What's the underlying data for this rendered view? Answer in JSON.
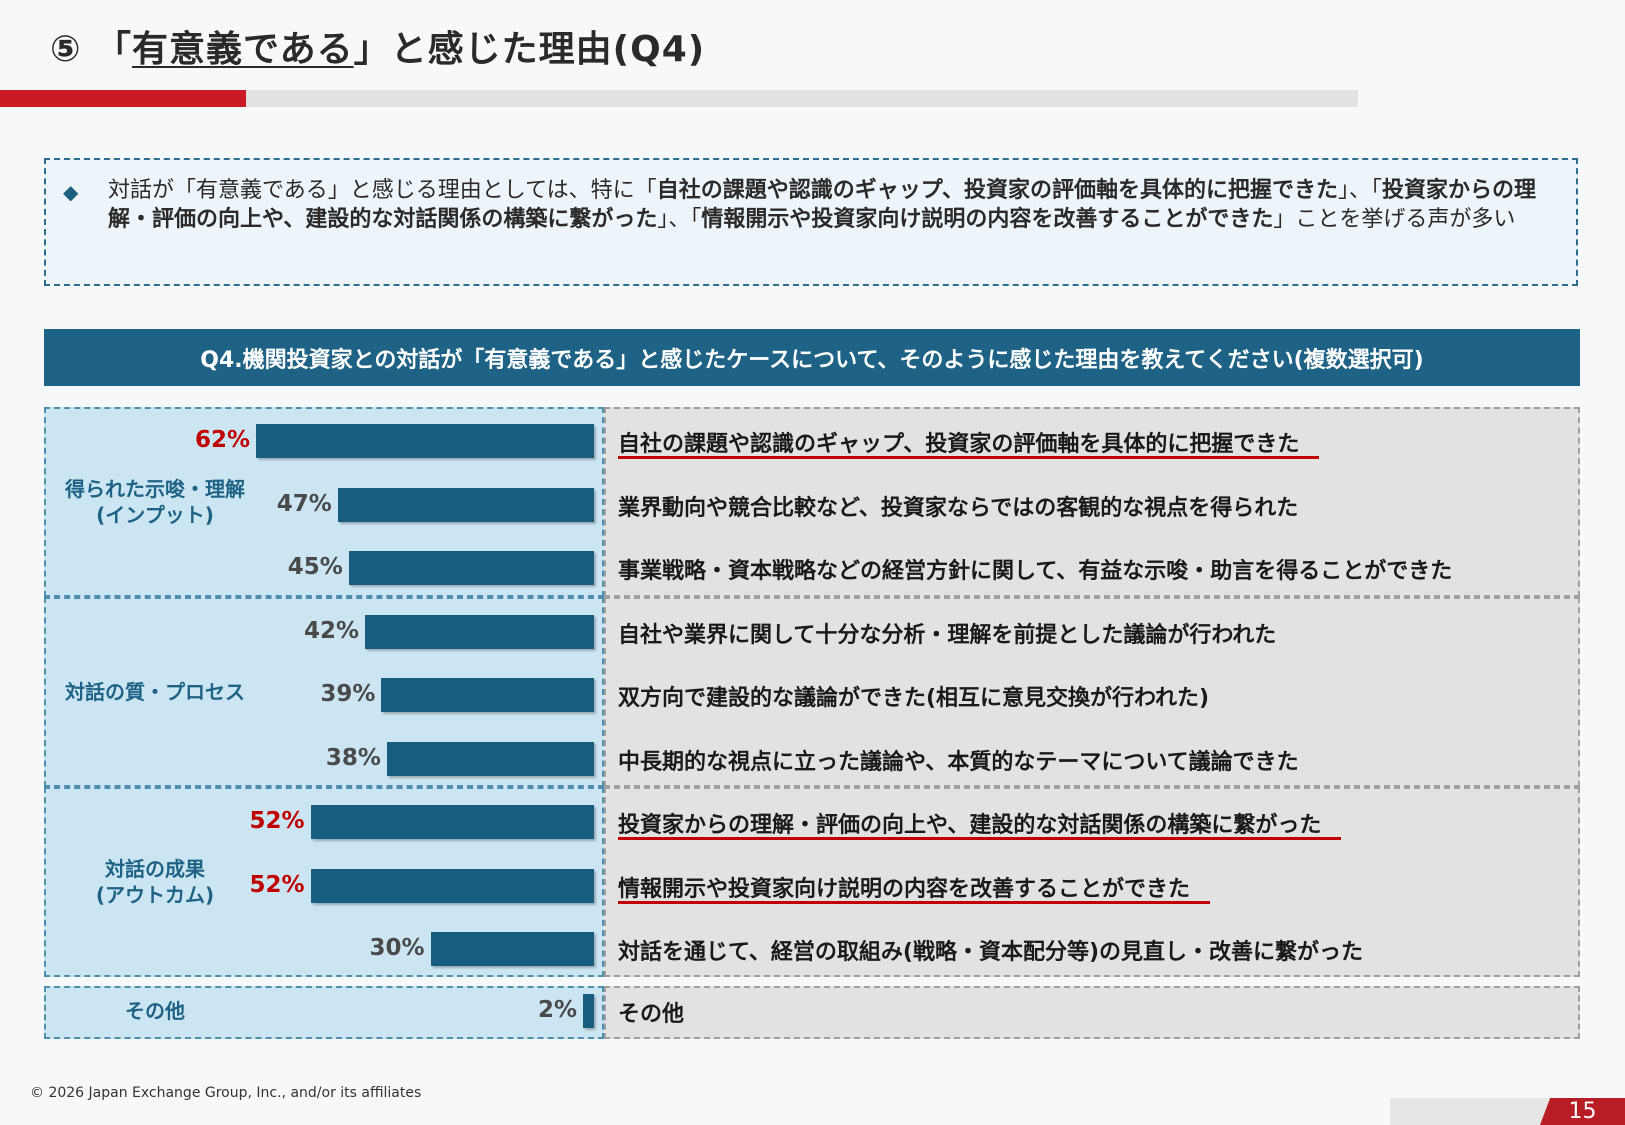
{
  "title": {
    "prefix": "⑤ 「",
    "underlined": "有意義である",
    "suffix": "」と感じた理由(Q4)"
  },
  "summary": {
    "t1": "対話が「有意義である」と感じる理由としては、特に「",
    "b1": "自社の課題や認識のギャップ、投資家の評価軸を具体的に把握できた",
    "t2": "」、「",
    "b2": "投資家からの理解・評価の向上や、建設的な対話関係の構築に繋がった",
    "t3": "」、「",
    "b3": "情報開示や投資家向け説明の内容を改善することができた",
    "t4": "」ことを挙げる声が多い"
  },
  "question": "Q4.機関投資家との対話が「有意義である」と感じたケースについて、そのように感じた理由を教えてください(複数選択可)",
  "chart_data": {
    "type": "bar",
    "orientation": "horizontal",
    "unit": "%",
    "xlim": [
      0,
      100
    ],
    "groups": [
      {
        "label_lines": [
          "得られた示唆・理解",
          "(インプット)"
        ],
        "start": 0,
        "count": 3
      },
      {
        "label_lines": [
          "対話の質・プロセス"
        ],
        "start": 3,
        "count": 3
      },
      {
        "label_lines": [
          "対話の成果",
          "(アウトカム)"
        ],
        "start": 6,
        "count": 3
      },
      {
        "label_lines": [
          "その他"
        ],
        "start": 9,
        "count": 1
      }
    ],
    "categories": [
      "自社の課題や認識のギャップ、投資家の評価軸を具体的に把握できた",
      "業界動向や競合比較など、投資家ならではの客観的な視点を得られた",
      "事業戦略・資本戦略などの経営方針に関して、有益な示唆・助言を得ることができた",
      "自社や業界に関して十分な分析・理解を前提とした議論が行われた",
      "双方向で建設的な議論ができた(相互に意見交換が行われた)",
      "中長期的な視点に立った議論や、本質的なテーマについて議論できた",
      "投資家からの理解・評価の向上や、建設的な対話関係の構築に繋がった",
      "情報開示や投資家向け説明の内容を改善することができた",
      "対話を通じて、経営の取組み(戦略・資本配分等)の見直し・改善に繋がった",
      "その他"
    ],
    "values": [
      62,
      47,
      45,
      42,
      39,
      38,
      52,
      52,
      30,
      2
    ],
    "value_labels": [
      "62%",
      "47%",
      "45%",
      "42%",
      "39%",
      "38%",
      "52%",
      "52%",
      "30%",
      "2%"
    ],
    "highlighted": [
      true,
      false,
      false,
      false,
      false,
      false,
      true,
      true,
      false,
      false
    ],
    "colors": {
      "bar": "#175d80",
      "highlight": "#c00000",
      "group_label": "#1e6386"
    }
  },
  "footer": {
    "copyright": "© 2026 Japan Exchange Group, Inc., and/or its affiliates",
    "page": "15"
  }
}
